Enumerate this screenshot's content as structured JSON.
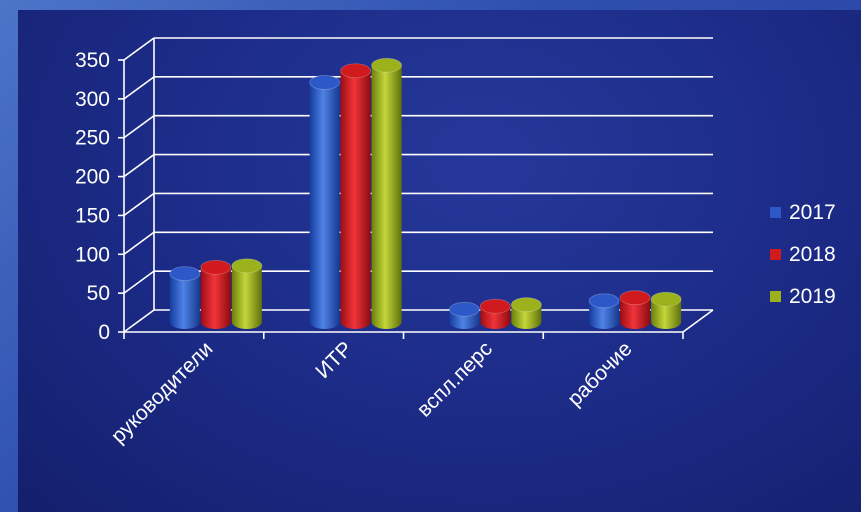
{
  "chart_data": {
    "type": "bar",
    "categories": [
      "руководители",
      "ИТР",
      "вспл.перс",
      "рабочие"
    ],
    "series": [
      {
        "name": "2017",
        "values": [
          52,
          298,
          6,
          17
        ]
      },
      {
        "name": "2018",
        "values": [
          60,
          313,
          10,
          21
        ]
      },
      {
        "name": "2019",
        "values": [
          62,
          320,
          12,
          19
        ]
      }
    ],
    "y_ticks": [
      "0",
      "50",
      "100",
      "150",
      "200",
      "250",
      "300",
      "350"
    ],
    "ylim": [
      0,
      350
    ],
    "grid": true,
    "legend_position": "right",
    "colors": [
      "#2d58c8",
      "#d01a1e",
      "#9cb21c"
    ]
  }
}
